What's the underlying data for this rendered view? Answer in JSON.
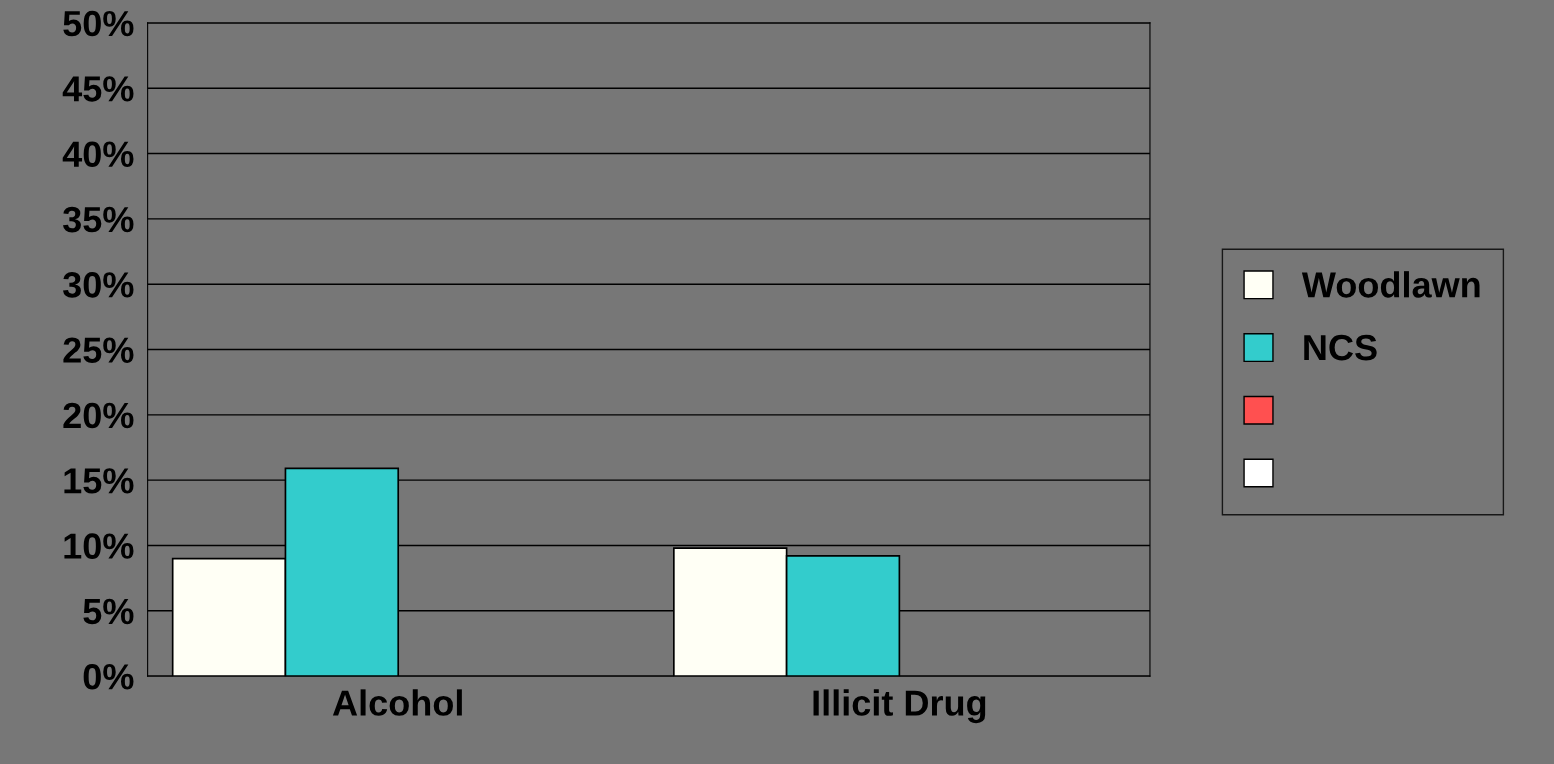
{
  "chart_data": {
    "type": "bar",
    "categories": [
      "Alcohol",
      "Illicit Drug"
    ],
    "series": [
      {
        "name": "Woodlawn",
        "color": "#fffff5",
        "values": [
          9,
          9.8
        ]
      },
      {
        "name": "NCS",
        "color": "#33cccc",
        "values": [
          15.9,
          9.2
        ]
      },
      {
        "color": "#ff5050",
        "values": [
          null,
          null
        ]
      },
      {
        "color": "#ffffff",
        "values": [
          null,
          null
        ]
      }
    ],
    "ylim": [
      0,
      50
    ],
    "yticks": [
      {
        "value": 0,
        "label": "0%"
      },
      {
        "value": 5,
        "label": "5%"
      },
      {
        "value": 10,
        "label": "10%"
      },
      {
        "value": 15,
        "label": "15%"
      },
      {
        "value": 20,
        "label": "20%"
      },
      {
        "value": 25,
        "label": "25%"
      },
      {
        "value": 30,
        "label": "30%"
      },
      {
        "value": 35,
        "label": "35%"
      },
      {
        "value": 40,
        "label": "40%"
      },
      {
        "value": 45,
        "label": "45%"
      },
      {
        "value": 50,
        "label": "50%"
      }
    ],
    "grid": "y",
    "legend": "right"
  }
}
